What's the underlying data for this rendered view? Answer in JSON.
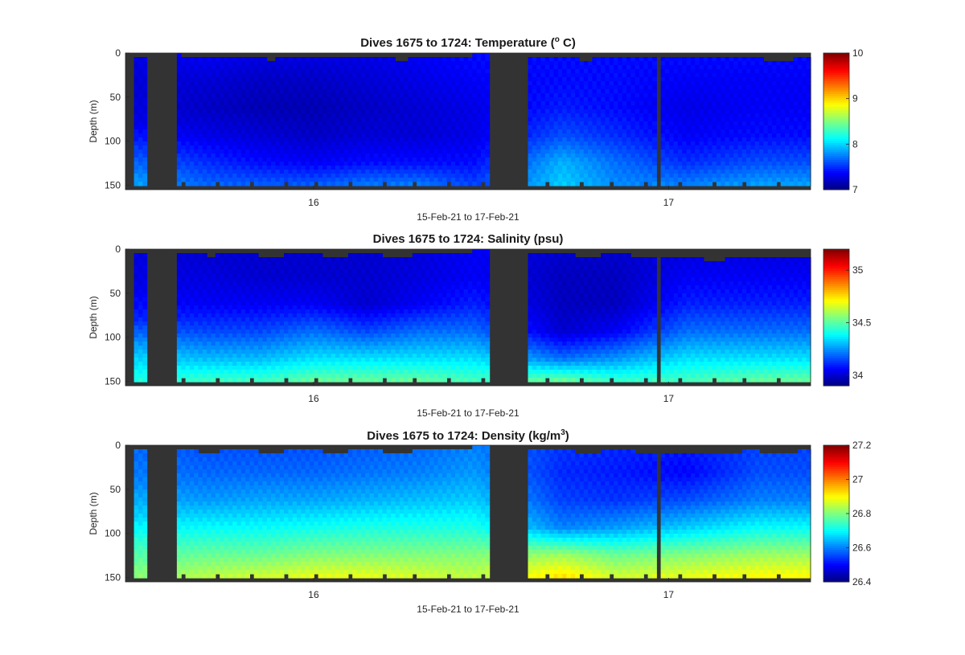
{
  "chart_data": [
    {
      "type": "heatmap",
      "title": "Dives 1675 to 1724: Temperature",
      "title_unit": {
        "open": " (",
        "base": "o",
        "super": "",
        "pre": "",
        "post": " C)",
        "sup_first": true
      },
      "ylabel": "Depth (m)",
      "xlabel": "15-Feb-21 to 17-Feb-21",
      "xtick_labels": [
        "16",
        "17"
      ],
      "xticks": [
        16,
        17
      ],
      "xlim": [
        15.47,
        17.4
      ],
      "ylim": [
        0,
        155
      ],
      "yticks": [
        0,
        50,
        100,
        150
      ],
      "ytick_labels": [
        "0",
        "50",
        "100",
        "150"
      ],
      "colorbar": {
        "range": [
          7,
          10
        ],
        "ticks": [
          7,
          8,
          9,
          10
        ],
        "tick_labels": [
          "7",
          "8",
          "9",
          "10"
        ]
      },
      "columns": [
        {
          "t": 15.5,
          "top": 0,
          "vals": [
            7.3,
            7.25,
            7.3,
            7.6,
            7.9
          ]
        },
        {
          "t": 15.7,
          "top": 3,
          "vals": [
            7.35,
            7.25,
            7.2,
            7.3,
            7.5,
            7.7
          ]
        },
        {
          "t": 15.85,
          "top": 4,
          "vals": [
            7.3,
            7.2,
            7.15,
            7.25,
            7.4,
            7.7
          ]
        },
        {
          "t": 16.0,
          "top": 4,
          "vals": [
            7.3,
            7.2,
            7.15,
            7.2,
            7.35,
            7.7
          ]
        },
        {
          "t": 16.15,
          "top": 3,
          "vals": [
            7.3,
            7.25,
            7.2,
            7.25,
            7.4,
            7.8
          ]
        },
        {
          "t": 16.3,
          "top": 5,
          "vals": [
            7.35,
            7.3,
            7.25,
            7.25,
            7.4,
            7.8
          ]
        },
        {
          "t": 16.45,
          "top": 0,
          "vals": [
            7.4,
            7.35,
            7.3,
            7.3,
            7.4,
            7.6
          ]
        },
        {
          "t": 16.7,
          "top": 5,
          "vals": [
            7.4,
            7.4,
            7.45,
            7.6,
            7.9,
            8.0
          ]
        },
        {
          "t": 16.85,
          "top": 3,
          "vals": [
            7.4,
            7.4,
            7.4,
            7.5,
            7.7,
            7.8
          ]
        },
        {
          "t": 17.05,
          "top": 3,
          "vals": [
            7.4,
            7.35,
            7.3,
            7.35,
            7.5,
            7.8
          ]
        },
        {
          "t": 17.25,
          "top": 5,
          "vals": [
            7.4,
            7.35,
            7.35,
            7.4,
            7.6,
            7.9
          ]
        }
      ]
    },
    {
      "type": "heatmap",
      "title": "Dives 1675 to 1724: Salinity (psu)",
      "title_unit": null,
      "ylabel": "Depth (m)",
      "xlabel": "15-Feb-21 to 17-Feb-21",
      "xtick_labels": [
        "16",
        "17"
      ],
      "xticks": [
        16,
        17
      ],
      "xlim": [
        15.47,
        17.4
      ],
      "ylim": [
        0,
        155
      ],
      "yticks": [
        0,
        50,
        100,
        150
      ],
      "ytick_labels": [
        "0",
        "50",
        "100",
        "150"
      ],
      "colorbar": {
        "range": [
          33.9,
          35.2
        ],
        "ticks": [
          34,
          34.5,
          35
        ],
        "tick_labels": [
          "34",
          "34.5",
          "35"
        ]
      },
      "columns": [
        {
          "t": 15.5,
          "top": 0,
          "vals": [
            34.02,
            34.03,
            34.1,
            34.3,
            34.45
          ]
        },
        {
          "t": 15.7,
          "top": 4,
          "vals": [
            34.0,
            34.02,
            34.05,
            34.15,
            34.3,
            34.5
          ]
        },
        {
          "t": 15.85,
          "top": 5,
          "vals": [
            34.0,
            34.0,
            34.05,
            34.15,
            34.3,
            34.5
          ]
        },
        {
          "t": 16.0,
          "top": 5,
          "vals": [
            34.0,
            34.0,
            34.05,
            34.2,
            34.35,
            34.55
          ]
        },
        {
          "t": 16.15,
          "top": 5,
          "vals": [
            34.0,
            34.0,
            34.0,
            34.15,
            34.35,
            34.55
          ]
        },
        {
          "t": 16.3,
          "top": 5,
          "vals": [
            34.02,
            34.02,
            34.05,
            34.2,
            34.35,
            34.55
          ]
        },
        {
          "t": 16.45,
          "top": 0,
          "vals": [
            34.05,
            34.05,
            34.1,
            34.2,
            34.35,
            34.5
          ]
        },
        {
          "t": 16.7,
          "top": 5,
          "vals": [
            34.0,
            33.98,
            33.98,
            34.0,
            34.2,
            34.6
          ]
        },
        {
          "t": 16.85,
          "top": 5,
          "vals": [
            34.0,
            33.98,
            33.98,
            34.05,
            34.25,
            34.5
          ]
        },
        {
          "t": 17.05,
          "top": 10,
          "vals": [
            34.02,
            34.05,
            34.1,
            34.2,
            34.35,
            34.5
          ]
        },
        {
          "t": 17.25,
          "top": 8,
          "vals": [
            34.02,
            34.05,
            34.1,
            34.2,
            34.35,
            34.55
          ]
        }
      ]
    },
    {
      "type": "heatmap",
      "title": "Dives 1675 to 1724: Density",
      "title_unit": {
        "open": " (",
        "base": "kg/m",
        "super": "3",
        "pre": "",
        "post": ")",
        "sup_first": false
      },
      "ylabel": "Depth (m)",
      "xlabel": "15-Feb-21 to 17-Feb-21",
      "xtick_labels": [
        "16",
        "17"
      ],
      "xticks": [
        16,
        17
      ],
      "xlim": [
        15.47,
        17.4
      ],
      "ylim": [
        0,
        155
      ],
      "yticks": [
        0,
        50,
        100,
        150
      ],
      "ytick_labels": [
        "0",
        "50",
        "100",
        "150"
      ],
      "colorbar": {
        "range": [
          26.4,
          27.2
        ],
        "ticks": [
          26.4,
          26.6,
          26.8,
          27,
          27.2
        ],
        "tick_labels": [
          "26.4",
          "26.6",
          "26.8",
          "27",
          "27.2"
        ]
      },
      "columns": [
        {
          "t": 15.5,
          "top": 0,
          "vals": [
            26.58,
            26.6,
            26.66,
            26.75,
            26.82
          ]
        },
        {
          "t": 15.7,
          "top": 5,
          "vals": [
            26.56,
            26.58,
            26.62,
            26.7,
            26.78,
            26.86
          ]
        },
        {
          "t": 15.85,
          "top": 5,
          "vals": [
            26.56,
            26.58,
            26.63,
            26.7,
            26.78,
            26.88
          ]
        },
        {
          "t": 16.0,
          "top": 5,
          "vals": [
            26.56,
            26.58,
            26.63,
            26.71,
            26.8,
            26.9
          ]
        },
        {
          "t": 16.15,
          "top": 5,
          "vals": [
            26.57,
            26.59,
            26.64,
            26.72,
            26.8,
            26.9
          ]
        },
        {
          "t": 16.3,
          "top": 5,
          "vals": [
            26.58,
            26.6,
            26.65,
            26.72,
            26.8,
            26.88
          ]
        },
        {
          "t": 16.45,
          "top": 0,
          "vals": [
            26.6,
            26.62,
            26.66,
            26.72,
            26.8,
            26.86
          ]
        },
        {
          "t": 16.7,
          "top": 5,
          "vals": [
            26.54,
            26.53,
            26.55,
            26.6,
            26.82,
            26.95
          ]
        },
        {
          "t": 16.85,
          "top": 5,
          "vals": [
            26.53,
            26.52,
            26.54,
            26.62,
            26.78,
            26.88
          ]
        },
        {
          "t": 17.05,
          "top": 8,
          "vals": [
            26.52,
            26.5,
            26.56,
            26.66,
            26.8,
            26.9
          ]
        },
        {
          "t": 17.25,
          "top": 6,
          "vals": [
            26.55,
            26.56,
            26.6,
            26.7,
            26.82,
            26.92
          ]
        }
      ]
    }
  ],
  "gaps": [
    [
      15.53,
      15.62
    ],
    [
      16.5,
      16.6
    ],
    [
      16.96,
      16.98
    ]
  ],
  "colors": {
    "missing": "#333333",
    "axis": "#262626",
    "background": "#ffffff"
  }
}
